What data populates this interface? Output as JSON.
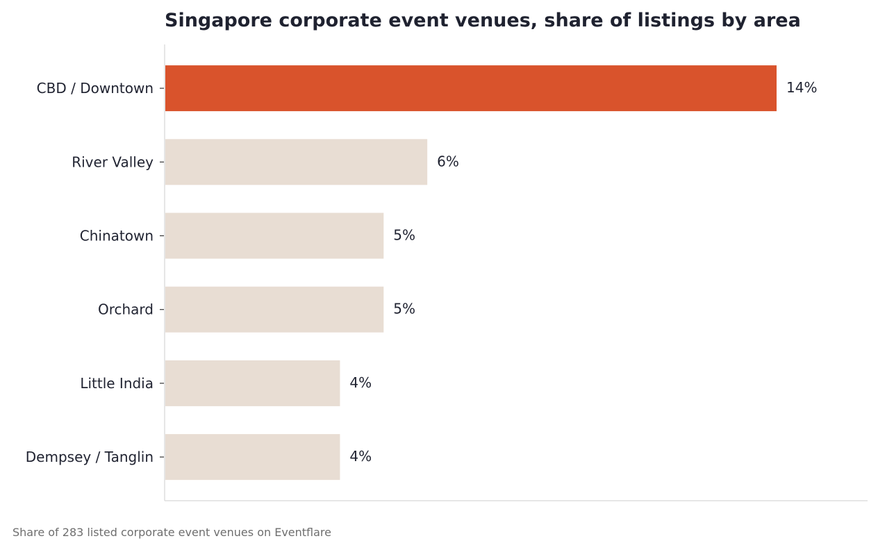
{
  "chart_data": {
    "type": "bar",
    "orientation": "horizontal",
    "title": "Singapore corporate event venues, share of listings by area",
    "xlabel": "",
    "ylabel": "",
    "categories": [
      "CBD / Downtown",
      "River Valley",
      "Chinatown",
      "Orchard",
      "Little India",
      "Dempsey / Tanglin"
    ],
    "values": [
      14,
      6,
      5,
      5,
      4,
      4
    ],
    "value_labels": [
      "14%",
      "6%",
      "5%",
      "5%",
      "4%",
      "4%"
    ],
    "unit": "%",
    "xlim": [
      0,
      16.1
    ],
    "grid": false,
    "legend": "none",
    "highlight_index": 0,
    "colors": {
      "highlight": "#d9532c",
      "default": "#e8ddd3",
      "axis": "#dddddd",
      "text": "#1f2230"
    }
  },
  "footnote": "Share of 283 listed corporate event venues on Eventflare"
}
